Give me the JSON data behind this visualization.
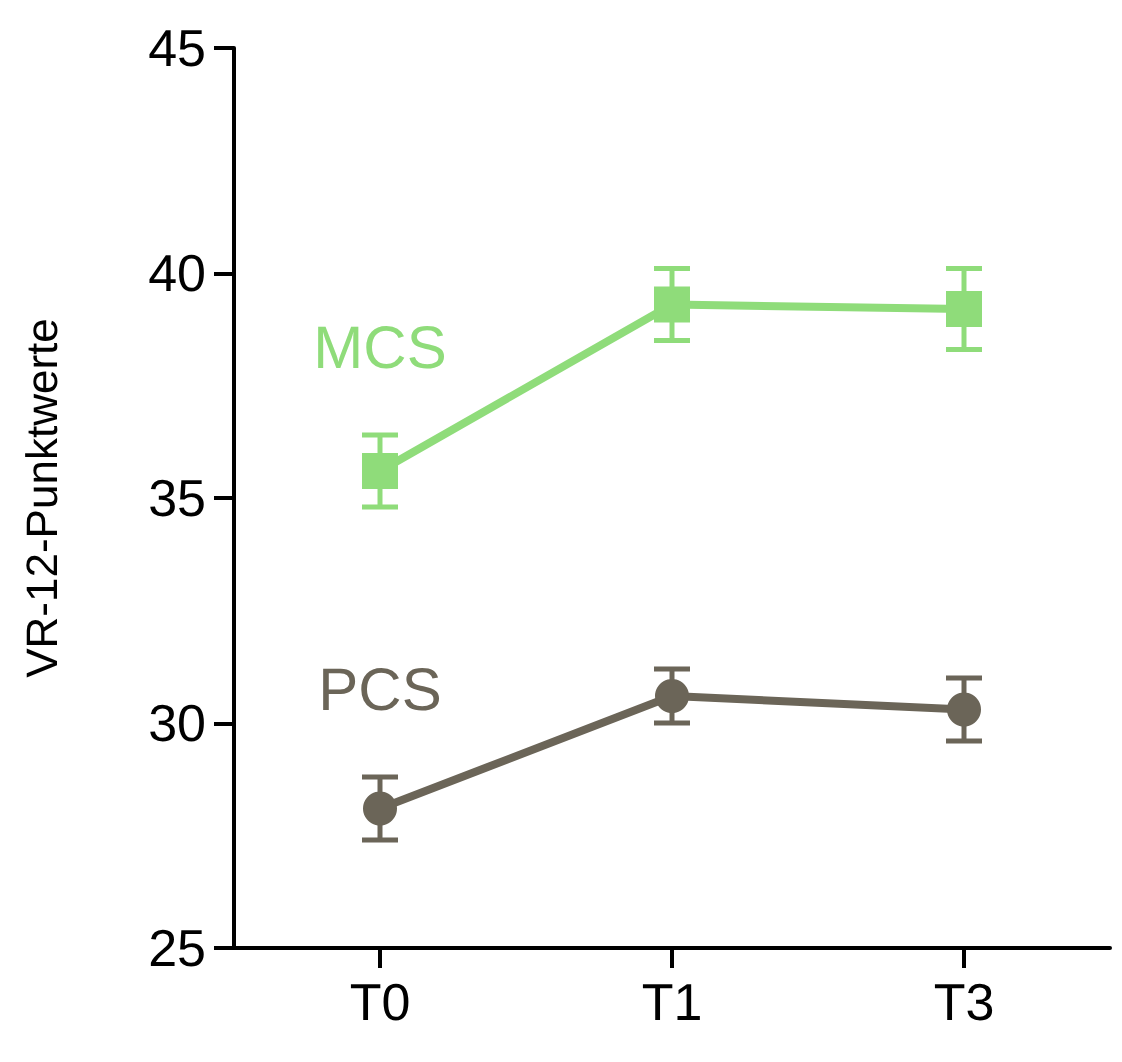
{
  "chart_data": {
    "type": "line",
    "ylabel": "VR-12-Punktwerte",
    "categories": [
      "T0",
      "T1",
      "T3"
    ],
    "ylim": [
      25,
      45
    ],
    "yticks": [
      25,
      30,
      35,
      40,
      45
    ],
    "grid": false,
    "legend": false,
    "line_style": "solid",
    "series": [
      {
        "name": "MCS",
        "color": "#8fdc7a",
        "marker": "square",
        "values": [
          35.6,
          39.3,
          39.2
        ],
        "errors": [
          0.8,
          0.8,
          0.9
        ]
      },
      {
        "name": "PCS",
        "color": "#6b6558",
        "marker": "circle",
        "values": [
          28.1,
          30.6,
          30.3
        ],
        "errors": [
          0.7,
          0.6,
          0.7
        ]
      }
    ]
  }
}
